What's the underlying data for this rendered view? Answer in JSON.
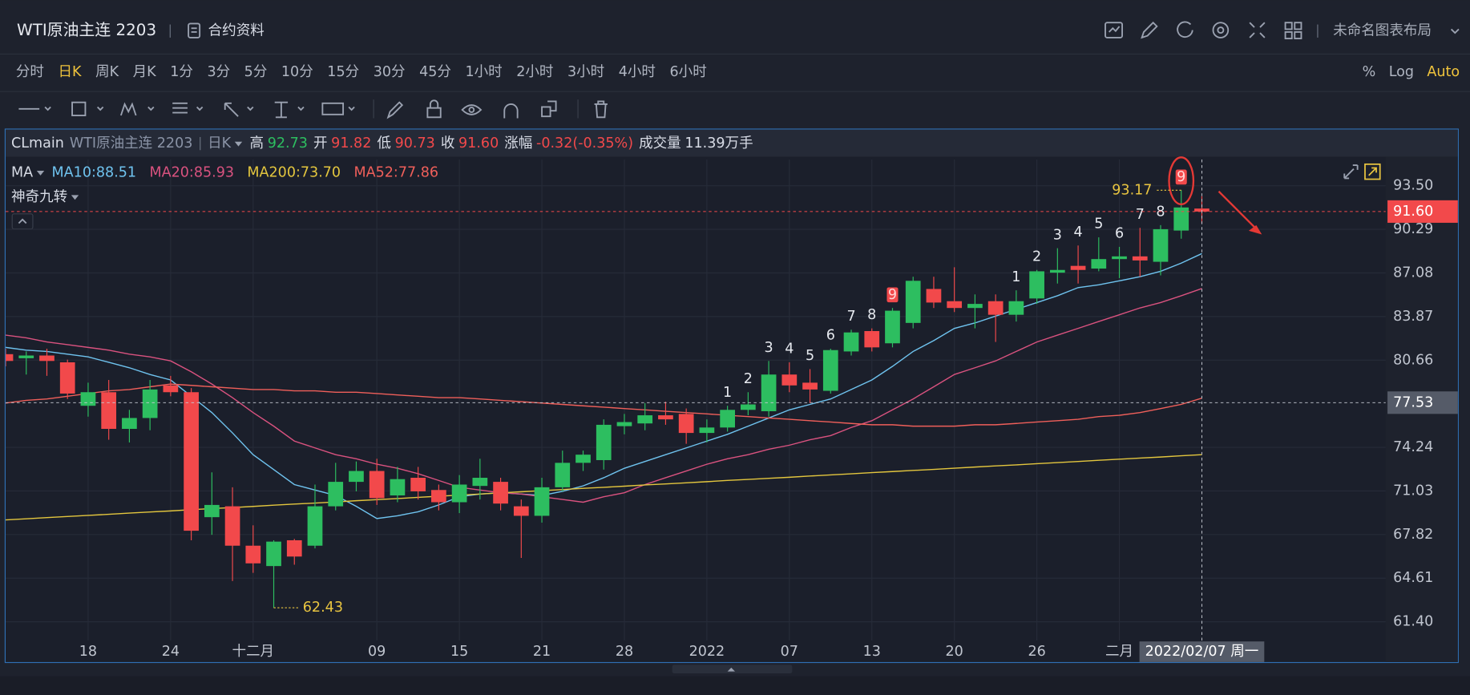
{
  "header": {
    "title": "WTI原油主连 2203",
    "contract_info": "合约资料",
    "layout_name": "未命名图表布局"
  },
  "periods": {
    "items": [
      "分时",
      "日K",
      "周K",
      "月K",
      "1分",
      "3分",
      "5分",
      "10分",
      "15分",
      "30分",
      "45分",
      "1小时",
      "2小时",
      "3小时",
      "4小时",
      "6小时"
    ],
    "active": 1
  },
  "scale_options": {
    "items": [
      "%",
      "Log",
      "Auto"
    ],
    "active": 2
  },
  "chart_data": {
    "type": "candlestick",
    "symbol": "CLmain",
    "instrument": "WTI原油主连 2203",
    "interval": "日K",
    "ohlc_labels": {
      "high": "高",
      "open": "开",
      "low": "低",
      "close": "收"
    },
    "change_label": "涨幅",
    "change_text": "-0.32(-0.35%)",
    "volume_label": "成交量",
    "volume_text": "11.39万手",
    "indicator": "MA",
    "indicator2": "神奇九转",
    "up_color": "#2dbe60",
    "down_color": "#f2494b",
    "open": [
      81.1,
      80.8,
      81.0,
      80.5,
      77.3,
      78.3,
      75.6,
      76.4,
      78.8,
      78.3,
      69.1,
      69.9,
      67.0,
      65.5,
      67.4,
      67.0,
      69.9,
      71.7,
      72.5,
      70.7,
      72.0,
      71.1,
      70.2,
      71.4,
      71.7,
      69.9,
      69.2,
      71.3,
      73.1,
      73.3,
      75.8,
      76.0,
      76.6,
      76.7,
      75.3,
      75.7,
      77.0,
      76.9,
      79.6,
      79.0,
      78.4,
      81.3,
      82.8,
      81.9,
      83.4,
      85.9,
      85.0,
      84.5,
      85.0,
      84.0,
      85.2,
      87.1,
      87.6,
      87.4,
      88.1,
      88.3,
      87.9,
      90.2,
      91.82
    ],
    "high": [
      81.5,
      81.3,
      81.5,
      80.7,
      79.0,
      79.2,
      77.0,
      79.2,
      79.5,
      78.6,
      72.4,
      71.3,
      68.5,
      67.4,
      67.5,
      71.5,
      73.1,
      73.2,
      73.4,
      72.8,
      72.8,
      71.5,
      72.2,
      73.4,
      72.0,
      70.4,
      72.0,
      74.0,
      74.0,
      76.3,
      76.7,
      77.5,
      77.6,
      77.1,
      76.3,
      77.3,
      78.3,
      80.6,
      80.5,
      80.0,
      81.5,
      82.9,
      83.0,
      84.5,
      86.8,
      86.8,
      87.5,
      85.5,
      85.5,
      85.8,
      87.3,
      88.9,
      89.1,
      89.7,
      89.0,
      90.4,
      90.6,
      93.17,
      92.73
    ],
    "low": [
      80.2,
      79.6,
      79.5,
      77.8,
      76.5,
      74.8,
      74.6,
      75.5,
      78.0,
      67.4,
      67.8,
      64.4,
      65.0,
      62.43,
      65.6,
      66.8,
      69.6,
      71.0,
      70.0,
      70.2,
      70.4,
      69.6,
      69.4,
      70.4,
      69.6,
      66.1,
      68.7,
      71.0,
      72.5,
      72.6,
      75.2,
      75.5,
      75.9,
      74.5,
      74.6,
      75.4,
      76.6,
      76.5,
      78.3,
      77.5,
      78.2,
      81.0,
      81.3,
      81.6,
      83.0,
      84.5,
      84.2,
      83.0,
      82.0,
      83.5,
      84.8,
      86.3,
      86.3,
      87.2,
      86.7,
      86.8,
      86.9,
      89.6,
      90.73
    ],
    "close": [
      80.6,
      81.0,
      80.6,
      78.2,
      78.3,
      75.6,
      76.4,
      78.5,
      78.3,
      68.1,
      70.0,
      67.0,
      65.7,
      67.3,
      66.2,
      69.9,
      71.7,
      72.5,
      70.5,
      71.9,
      71.0,
      70.2,
      71.5,
      72.0,
      70.1,
      69.2,
      71.3,
      73.1,
      73.7,
      75.9,
      76.1,
      76.6,
      76.3,
      75.3,
      75.7,
      77.0,
      77.4,
      79.6,
      78.8,
      78.5,
      81.4,
      82.7,
      81.6,
      84.3,
      86.5,
      84.9,
      84.5,
      84.8,
      84.0,
      85.0,
      87.2,
      87.3,
      87.3,
      88.1,
      88.3,
      88.0,
      90.3,
      91.9,
      91.6
    ],
    "readout": {
      "index": 58,
      "close_label": "91.60"
    },
    "series": [
      {
        "name": "MA10:",
        "color": "#6fc3ef",
        "legend_value": "88.51",
        "values": [
          81.6,
          81.4,
          81.3,
          81.1,
          80.9,
          80.5,
          80.1,
          79.6,
          79.2,
          78.0,
          76.8,
          75.3,
          73.7,
          72.6,
          71.5,
          71.1,
          70.7,
          69.9,
          69.0,
          69.2,
          69.5,
          70.0,
          70.6,
          70.8,
          70.9,
          70.8,
          70.7,
          71.0,
          71.4,
          72.0,
          72.7,
          73.2,
          73.7,
          74.2,
          74.7,
          75.2,
          75.8,
          76.4,
          77.0,
          77.4,
          77.8,
          78.5,
          79.2,
          80.2,
          81.3,
          82.1,
          83.0,
          83.4,
          83.9,
          84.4,
          84.9,
          85.4,
          86.0,
          86.2,
          86.5,
          86.8,
          87.2,
          87.8,
          88.51
        ]
      },
      {
        "name": "MA20:",
        "color": "#d9527f",
        "legend_value": "85.93",
        "values": [
          82.5,
          82.3,
          82.0,
          81.8,
          81.6,
          81.4,
          81.1,
          80.9,
          80.6,
          79.8,
          78.9,
          77.9,
          76.8,
          75.8,
          74.7,
          74.2,
          73.7,
          73.4,
          73.0,
          72.7,
          72.3,
          71.8,
          71.3,
          71.1,
          70.9,
          70.8,
          70.6,
          70.4,
          70.2,
          70.6,
          70.9,
          71.5,
          72.0,
          72.5,
          73.0,
          73.4,
          73.7,
          74.1,
          74.4,
          74.8,
          75.1,
          75.7,
          76.2,
          77.0,
          77.8,
          78.7,
          79.6,
          80.1,
          80.6,
          81.3,
          82.0,
          82.5,
          83.0,
          83.5,
          84.0,
          84.5,
          84.9,
          85.4,
          85.93
        ]
      },
      {
        "name": "MA200:",
        "color": "#e3c63e",
        "legend_value": "73.70",
        "values": [
          68.9,
          68.98,
          69.07,
          69.15,
          69.23,
          69.31,
          69.4,
          69.48,
          69.56,
          69.65,
          69.73,
          69.81,
          69.89,
          69.98,
          70.06,
          70.14,
          70.22,
          70.31,
          70.39,
          70.47,
          70.56,
          70.64,
          70.72,
          70.8,
          70.89,
          70.97,
          71.05,
          71.13,
          71.22,
          71.3,
          71.38,
          71.47,
          71.55,
          71.63,
          71.71,
          71.8,
          71.88,
          71.96,
          72.04,
          72.13,
          72.21,
          72.29,
          72.38,
          72.46,
          72.54,
          72.62,
          72.71,
          72.79,
          72.87,
          72.95,
          73.04,
          73.12,
          73.2,
          73.29,
          73.37,
          73.45,
          73.53,
          73.62,
          73.7
        ]
      },
      {
        "name": "MA52:",
        "color": "#ef5f5a",
        "legend_value": "77.86",
        "values": [
          77.5,
          77.7,
          77.8,
          78.0,
          78.2,
          78.4,
          78.5,
          78.7,
          78.9,
          78.8,
          78.7,
          78.6,
          78.5,
          78.5,
          78.4,
          78.4,
          78.3,
          78.3,
          78.2,
          78.1,
          78.0,
          77.9,
          77.9,
          77.8,
          77.7,
          77.6,
          77.5,
          77.4,
          77.3,
          77.2,
          77.1,
          77.0,
          76.9,
          76.8,
          76.7,
          76.6,
          76.5,
          76.4,
          76.3,
          76.2,
          76.1,
          76.0,
          75.9,
          75.9,
          75.8,
          75.8,
          75.8,
          75.9,
          75.9,
          76.0,
          76.1,
          76.2,
          76.3,
          76.5,
          76.6,
          76.8,
          77.1,
          77.4,
          77.86
        ]
      }
    ],
    "nine_turn": {
      "indices": [
        35,
        36,
        37,
        38,
        39,
        40,
        41,
        42,
        43,
        49,
        50,
        51,
        52,
        53,
        54,
        55,
        56,
        57
      ],
      "counts": [
        1,
        2,
        3,
        4,
        5,
        6,
        7,
        8,
        9,
        1,
        2,
        3,
        4,
        5,
        6,
        7,
        8,
        9
      ]
    },
    "annotations": [
      {
        "index": 57,
        "field": "high"
      },
      {
        "index": 13,
        "field": "low"
      }
    ],
    "crosshair": {
      "index": 58,
      "value": 77.53,
      "date": "2022/02/07 周一"
    },
    "ylim": [
      60.02,
      95.43
    ],
    "yticks": [
      {
        "value": 61.4,
        "label": "61.40"
      },
      {
        "value": 64.61,
        "label": "64.61"
      },
      {
        "value": 67.82,
        "label": "67.82"
      },
      {
        "value": 71.03,
        "label": "71.03"
      },
      {
        "value": 74.24,
        "label": "74.24"
      },
      {
        "value": 80.66,
        "label": "80.66"
      },
      {
        "value": 83.87,
        "label": "83.87"
      },
      {
        "value": 87.08,
        "label": "87.08"
      },
      {
        "value": 90.29,
        "label": "90.29"
      },
      {
        "value": 93.5,
        "label": "93.50"
      }
    ],
    "xlim": [
      0,
      66.91
    ],
    "xticks": [
      {
        "value": 4,
        "label": "18"
      },
      {
        "value": 8,
        "label": "24"
      },
      {
        "value": 12,
        "label": "十二月"
      },
      {
        "value": 18,
        "label": "09"
      },
      {
        "value": 22,
        "label": "15"
      },
      {
        "value": 26,
        "label": "21"
      },
      {
        "value": 30,
        "label": "28"
      },
      {
        "value": 34,
        "label": "2022"
      },
      {
        "value": 38,
        "label": "07"
      },
      {
        "value": 42,
        "label": "13"
      },
      {
        "value": 46,
        "label": "20"
      },
      {
        "value": 50,
        "label": "26"
      },
      {
        "value": 54,
        "label": "二月"
      }
    ],
    "grid": true
  }
}
